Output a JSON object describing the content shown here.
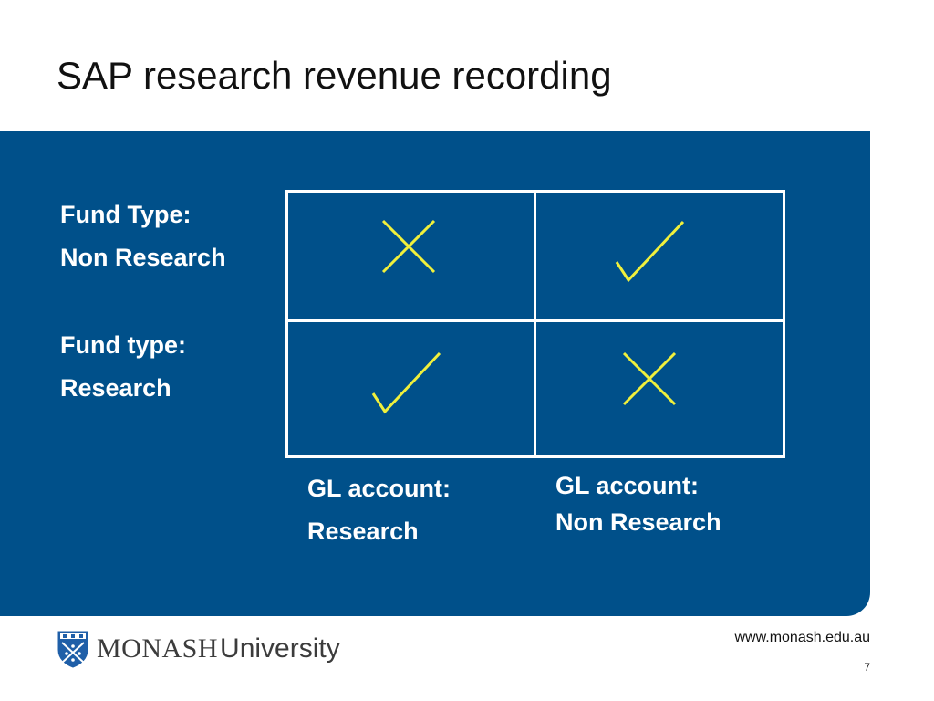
{
  "slide": {
    "title": "SAP research revenue recording",
    "page_number": "7"
  },
  "rows": [
    {
      "line1": "Fund Type:",
      "line2": "Non Research"
    },
    {
      "line1": "Fund type:",
      "line2": "Research"
    }
  ],
  "columns": [
    {
      "line1": "GL account:",
      "line2": "Research"
    },
    {
      "line1": "GL account:",
      "line2": "Non Research"
    }
  ],
  "matrix": [
    [
      "cross-icon",
      "check-icon"
    ],
    [
      "check-icon",
      "cross-icon"
    ]
  ],
  "colors": {
    "panel": "#00508a",
    "mark": "#f0f03c",
    "grid_line": "#ffffff"
  },
  "footer": {
    "logo_word1": "MONASH",
    "logo_word2": "University",
    "url": "www.monash.edu.au"
  }
}
